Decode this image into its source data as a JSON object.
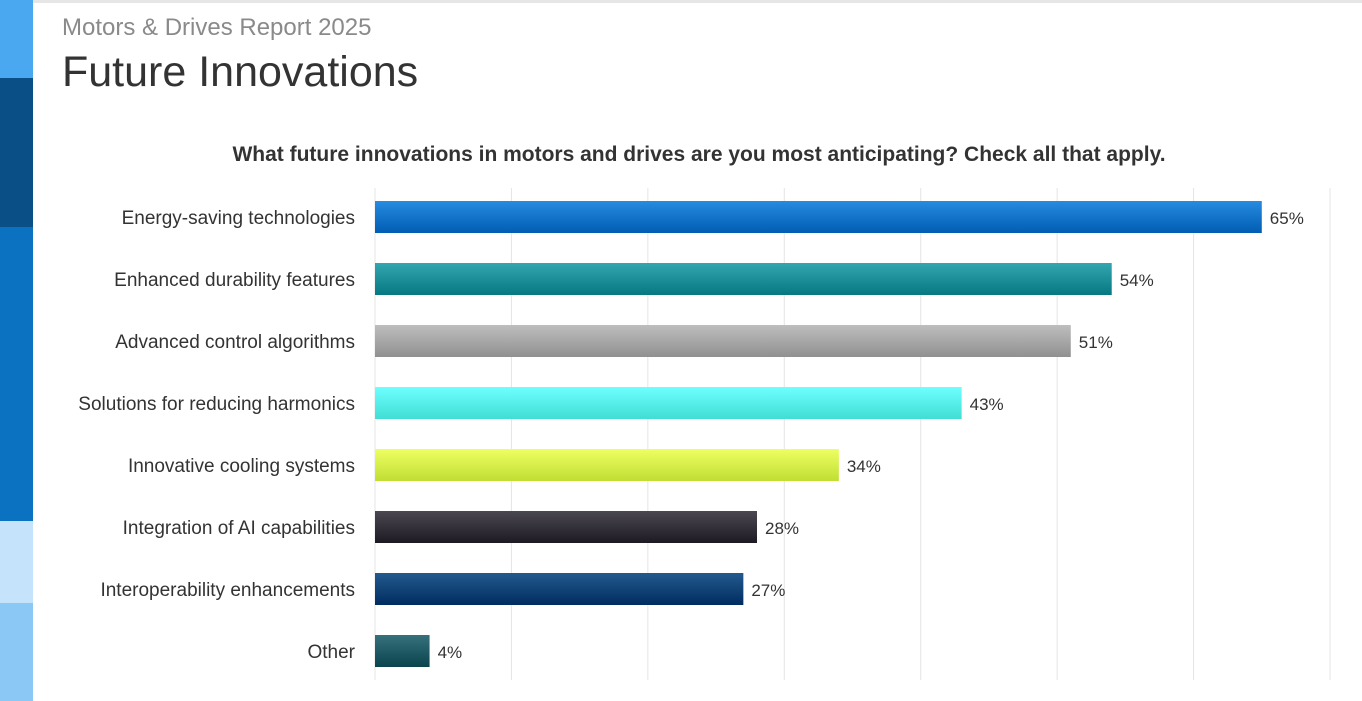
{
  "report": {
    "subtitle": "Motors & Drives Report 2025",
    "title": "Future Innovations"
  },
  "sidebar": {
    "colors": [
      "#4aa8f0",
      "#0a4f86",
      "#0b72c2",
      "#c5e3fa",
      "#8cc8f5"
    ]
  },
  "chart_data": {
    "type": "bar",
    "orientation": "horizontal",
    "title": "What future innovations in motors and drives are you most anticipating? Check all that apply.",
    "categories": [
      "Energy-saving technologies",
      "Enhanced durability features",
      "Advanced control algorithms",
      "Solutions for reducing harmonics",
      "Innovative cooling systems",
      "Integration of AI capabilities",
      "Interoperability enhancements",
      "Other"
    ],
    "values": [
      65,
      54,
      51,
      43,
      34,
      28,
      27,
      4
    ],
    "value_labels": [
      "65%",
      "54%",
      "51%",
      "43%",
      "34%",
      "28%",
      "27%",
      "4%"
    ],
    "colors": [
      "#0b6fc4",
      "#178a94",
      "#a2a2a2",
      "#52f0e6",
      "#d2f046",
      "#2f2c35",
      "#073e72",
      "#1b5660"
    ],
    "xlim": [
      0,
      70
    ],
    "grid": true,
    "xlabel": "",
    "ylabel": ""
  }
}
